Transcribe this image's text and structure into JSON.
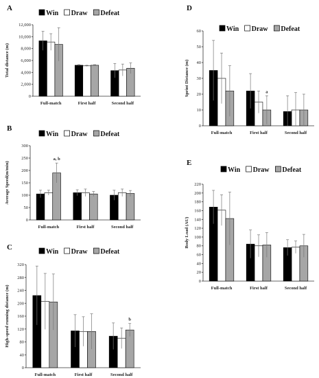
{
  "colors": {
    "win": "#000000",
    "draw": "#ffffff",
    "defeat": "#a6a6a6",
    "error": "#888888"
  },
  "chart_data": [
    {
      "panel": "A",
      "type": "bar",
      "categories": [
        "Full-match",
        "First half",
        "Second half"
      ],
      "ylabel": "Total distance (m)",
      "ylim": [
        0,
        12000
      ],
      "yticks": [
        "0",
        "2,000",
        "4,000",
        "6,000",
        "8,000",
        "10,000",
        "12,000"
      ],
      "series": [
        {
          "name": "Win",
          "values": [
            9300,
            5200,
            4300
          ],
          "errors": [
            1600,
            100,
            1200
          ]
        },
        {
          "name": "Draw",
          "values": [
            9100,
            5100,
            4400
          ],
          "errors": [
            1400,
            100,
            1000
          ]
        },
        {
          "name": "Defeat",
          "values": [
            8700,
            5200,
            4700
          ],
          "errors": [
            2800,
            100,
            900
          ]
        }
      ],
      "annotations": []
    },
    {
      "panel": "B",
      "type": "bar",
      "categories": [
        "Full-match",
        "First half",
        "Second half"
      ],
      "ylabel": "Average Speed(m/min)",
      "ylim": [
        0,
        300
      ],
      "yticks": [
        "0",
        "50",
        "100",
        "150",
        "200",
        "250",
        "300"
      ],
      "series": [
        {
          "name": "Win",
          "values": [
            105,
            110,
            100
          ],
          "errors": [
            15,
            12,
            20
          ]
        },
        {
          "name": "Draw",
          "values": [
            110,
            110,
            110
          ],
          "errors": [
            10,
            15,
            15
          ]
        },
        {
          "name": "Defeat",
          "values": [
            190,
            105,
            107
          ],
          "errors": [
            40,
            10,
            12
          ]
        }
      ],
      "annotations": [
        {
          "series": 2,
          "category": 0,
          "text": "a, b"
        }
      ]
    },
    {
      "panel": "C",
      "type": "bar",
      "categories": [
        "Full-match",
        "First half",
        "Second half"
      ],
      "ylabel": "High-speed running distance (m)",
      "ylim": [
        0,
        350
      ],
      "yticks": [
        "0",
        "40",
        "80",
        "120",
        "160",
        "200",
        "240",
        "280",
        "320"
      ],
      "series": [
        {
          "name": "Win",
          "values": [
            245,
            125,
            107
          ],
          "errors": [
            100,
            55,
            45
          ]
        },
        {
          "name": "Draw",
          "values": [
            225,
            123,
            100
          ],
          "errors": [
            95,
            50,
            35
          ]
        },
        {
          "name": "Defeat",
          "values": [
            223,
            123,
            128
          ],
          "errors": [
            95,
            60,
            22
          ]
        }
      ],
      "annotations": [
        {
          "series": 2,
          "category": 2,
          "text": "b"
        }
      ]
    },
    {
      "panel": "D",
      "type": "bar",
      "categories": [
        "Full-match",
        "First half",
        "Second half"
      ],
      "ylabel": "Sprint Distance (m)",
      "ylim": [
        0,
        60
      ],
      "yticks": [
        "0",
        "10",
        "20",
        "30",
        "40",
        "50",
        "60"
      ],
      "series": [
        {
          "name": "Win",
          "values": [
            35,
            22,
            9
          ],
          "errors": [
            19,
            11,
            10
          ]
        },
        {
          "name": "Draw",
          "values": [
            30,
            15,
            10
          ],
          "errors": [
            16,
            7,
            11
          ]
        },
        {
          "name": "Defeat",
          "values": [
            22,
            10,
            10
          ],
          "errors": [
            16,
            9,
            10
          ]
        }
      ],
      "annotations": [
        {
          "series": 2,
          "category": 1,
          "text": "a"
        }
      ]
    },
    {
      "panel": "E",
      "type": "bar",
      "categories": [
        "Full-match",
        "First half",
        "Second half"
      ],
      "ylabel": "Body Load (AU)",
      "ylim": [
        0,
        220
      ],
      "yticks": [
        "0",
        "20",
        "40",
        "60",
        "80",
        "100",
        "120",
        "140",
        "160",
        "180",
        "200",
        "220"
      ],
      "series": [
        {
          "name": "Win",
          "values": [
            168,
            84,
            76
          ],
          "errors": [
            38,
            32,
            18
          ]
        },
        {
          "name": "Draw",
          "values": [
            161,
            80,
            77
          ],
          "errors": [
            35,
            25,
            14
          ]
        },
        {
          "name": "Defeat",
          "values": [
            142,
            82,
            80
          ],
          "errors": [
            60,
            28,
            26
          ]
        }
      ],
      "annotations": []
    }
  ]
}
